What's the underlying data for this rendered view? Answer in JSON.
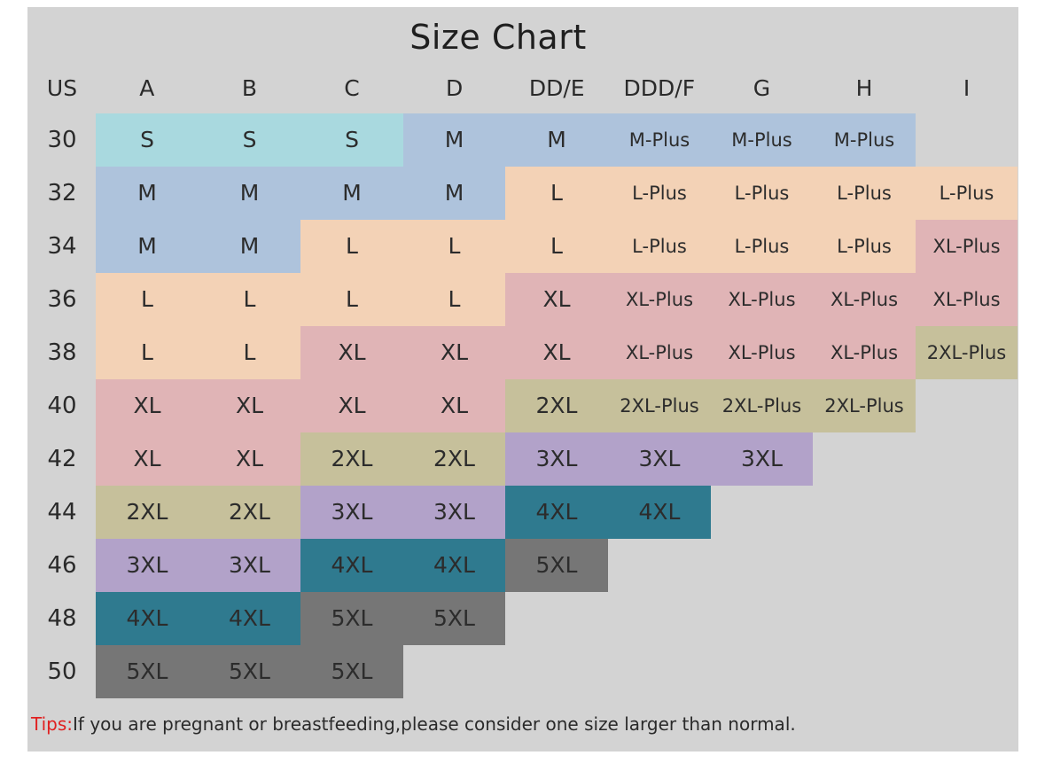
{
  "title": "Size Chart",
  "header": {
    "corner": "US",
    "cups": [
      "A",
      "B",
      "C",
      "D",
      "DD/E",
      "DDD/F",
      "G",
      "H",
      "I"
    ]
  },
  "colors": {
    "S": "#a9d9df",
    "M": "#aec3dc",
    "M-Plus": "#aec3dc",
    "L": "#f3d2b6",
    "L-Plus": "#f3d2b6",
    "XL": "#e0b4b6",
    "XL-Plus": "#e0b4b6",
    "2XL": "#c6c09b",
    "2XL-Plus": "#c6c09b",
    "3XL": "#b2a2c9",
    "4XL": "#2f7a8f",
    "5XL": "#767676"
  },
  "rows": [
    {
      "band": "30",
      "sizes": [
        "S",
        "S",
        "S",
        "M",
        "M",
        "M-Plus",
        "M-Plus",
        "M-Plus",
        ""
      ]
    },
    {
      "band": "32",
      "sizes": [
        "M",
        "M",
        "M",
        "M",
        "L",
        "L-Plus",
        "L-Plus",
        "L-Plus",
        "L-Plus"
      ]
    },
    {
      "band": "34",
      "sizes": [
        "M",
        "M",
        "L",
        "L",
        "L",
        "L-Plus",
        "L-Plus",
        "L-Plus",
        "XL-Plus"
      ]
    },
    {
      "band": "36",
      "sizes": [
        "L",
        "L",
        "L",
        "L",
        "XL",
        "XL-Plus",
        "XL-Plus",
        "XL-Plus",
        "XL-Plus"
      ]
    },
    {
      "band": "38",
      "sizes": [
        "L",
        "L",
        "XL",
        "XL",
        "XL",
        "XL-Plus",
        "XL-Plus",
        "XL-Plus",
        "2XL-Plus"
      ]
    },
    {
      "band": "40",
      "sizes": [
        "XL",
        "XL",
        "XL",
        "XL",
        "2XL",
        "2XL-Plus",
        "2XL-Plus",
        "2XL-Plus",
        ""
      ]
    },
    {
      "band": "42",
      "sizes": [
        "XL",
        "XL",
        "2XL",
        "2XL",
        "3XL",
        "3XL",
        "3XL",
        "",
        ""
      ]
    },
    {
      "band": "44",
      "sizes": [
        "2XL",
        "2XL",
        "3XL",
        "3XL",
        "4XL",
        "4XL",
        "",
        "",
        ""
      ]
    },
    {
      "band": "46",
      "sizes": [
        "3XL",
        "3XL",
        "4XL",
        "4XL",
        "5XL",
        "",
        "",
        "",
        ""
      ]
    },
    {
      "band": "48",
      "sizes": [
        "4XL",
        "4XL",
        "5XL",
        "5XL",
        "",
        "",
        "",
        "",
        ""
      ]
    },
    {
      "band": "50",
      "sizes": [
        "5XL",
        "5XL",
        "5XL",
        "",
        "",
        "",
        "",
        "",
        ""
      ]
    }
  ],
  "tips": {
    "prefix": "Tips:",
    "text": "If you are pregnant or breastfeeding,please consider one size larger than normal."
  }
}
